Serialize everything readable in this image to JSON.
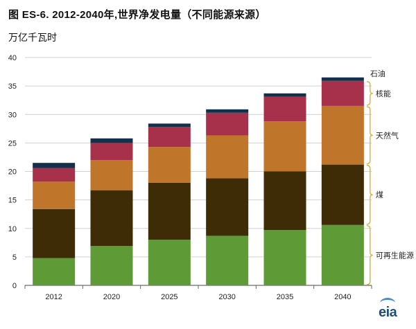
{
  "title": "图 ES-6.  2012-2040年,世界净发电量（不同能源来源）",
  "unit_label": "万亿千瓦时",
  "logo_text": "eia",
  "chart_data": {
    "type": "bar",
    "stacked": true,
    "title": "图 ES-6.  2012-2040年,世界净发电量（不同能源来源）",
    "ylabel": "万亿千瓦时",
    "ylim": [
      0,
      40
    ],
    "yticks": [
      0,
      5,
      10,
      15,
      20,
      25,
      30,
      35,
      40
    ],
    "grid": true,
    "legend_position": "right",
    "categories": [
      "2012",
      "2020",
      "2025",
      "2030",
      "2035",
      "2040"
    ],
    "series": [
      {
        "name": "可再生能源",
        "color": "#5e9a35",
        "values": [
          4.8,
          6.9,
          8.0,
          8.7,
          9.7,
          10.6
        ]
      },
      {
        "name": "煤",
        "color": "#3e2c06",
        "values": [
          8.6,
          9.8,
          10.0,
          10.1,
          10.3,
          10.6
        ]
      },
      {
        "name": "天然气",
        "color": "#c0762a",
        "values": [
          4.8,
          5.3,
          6.3,
          7.5,
          8.8,
          10.3
        ]
      },
      {
        "name": "核能",
        "color": "#a7304a",
        "values": [
          2.4,
          3.0,
          3.5,
          4.0,
          4.3,
          4.4
        ]
      },
      {
        "name": "石油",
        "color": "#12304a",
        "values": [
          0.9,
          0.8,
          0.6,
          0.6,
          0.6,
          0.6
        ]
      }
    ],
    "bracket_color": "#d9b340"
  }
}
